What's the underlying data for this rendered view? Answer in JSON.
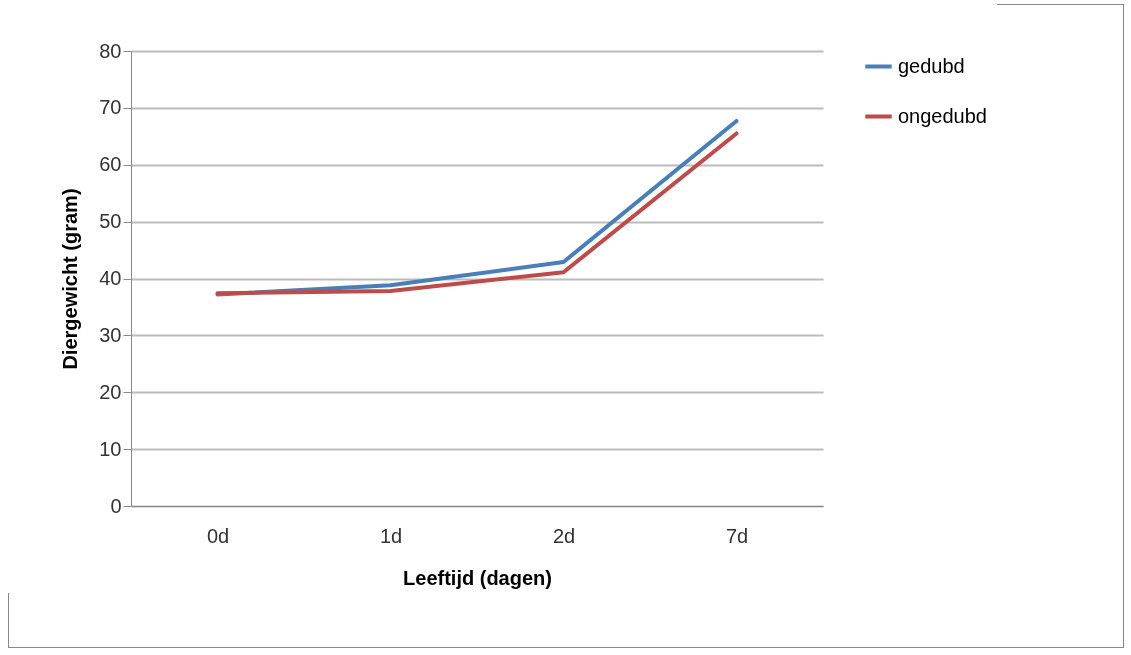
{
  "chart_data": {
    "type": "line",
    "xlabel": "Leeftijd (dagen)",
    "ylabel": "Diergewicht (gram)",
    "categories": [
      "0d",
      "1d",
      "2d",
      "7d"
    ],
    "series": [
      {
        "name": "gedubd",
        "color": "#4a7ebb",
        "values": [
          37.2,
          38.8,
          42.9,
          67.7
        ]
      },
      {
        "name": "ongedubd",
        "color": "#be4b48",
        "values": [
          37.4,
          37.8,
          41.1,
          65.5
        ]
      }
    ],
    "ylim": [
      0,
      80
    ],
    "yticks": [
      0,
      10,
      20,
      30,
      40,
      50,
      60,
      70,
      80
    ],
    "grid": "y",
    "legend": "right",
    "marker": "none",
    "line_style": "solid"
  }
}
